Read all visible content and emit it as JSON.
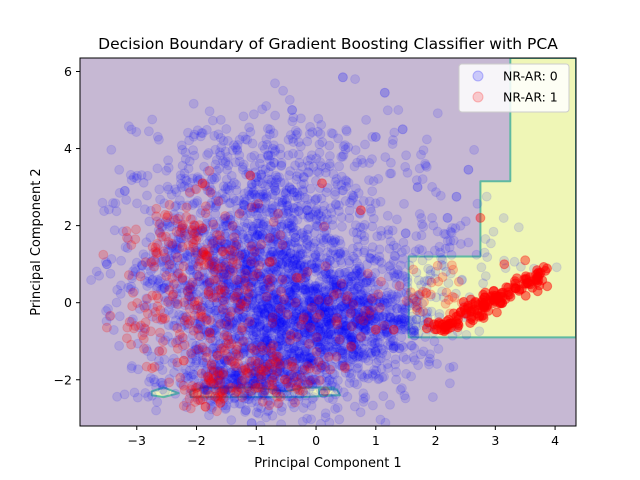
{
  "chart_data": {
    "type": "scatter",
    "title": "Decision Boundary of Gradient Boosting Classifier with PCA",
    "xlabel": "Principal Component 1",
    "ylabel": "Principal Component 2",
    "xlim": [
      -3.95,
      4.35
    ],
    "ylim": [
      -3.2,
      6.35
    ],
    "xticks": [
      -3,
      -2,
      -1,
      0,
      1,
      2,
      3,
      4
    ],
    "yticks": [
      -2,
      0,
      2,
      4,
      6
    ],
    "grid": false,
    "legend_position": "top-right",
    "colors": {
      "background_region": "#c6b8d3",
      "class1_region": "#eff6b6",
      "boundary": "#5fb9a1",
      "class0_points": "#0000ff",
      "class1_points": "#ff0000"
    },
    "decision_regions": [
      {
        "class": 1,
        "polygon": [
          [
            3.25,
            6.35
          ],
          [
            4.35,
            6.35
          ],
          [
            4.35,
            -0.9
          ],
          [
            1.55,
            -0.9
          ],
          [
            1.55,
            1.2
          ],
          [
            2.75,
            1.2
          ],
          [
            2.75,
            3.15
          ],
          [
            3.25,
            3.15
          ]
        ]
      },
      {
        "class": 1,
        "polygon": [
          [
            -2.75,
            -2.3
          ],
          [
            -2.55,
            -2.2
          ],
          [
            -2.3,
            -2.35
          ],
          [
            -2.55,
            -2.45
          ],
          [
            -2.75,
            -2.4
          ]
        ]
      },
      {
        "class": 1,
        "polygon": [
          [
            -2.1,
            -2.3
          ],
          [
            -1.9,
            -2.2
          ],
          [
            -1.0,
            -2.2
          ],
          [
            -0.5,
            -2.3
          ],
          [
            -0.2,
            -2.2
          ],
          [
            0.3,
            -2.2
          ],
          [
            0.35,
            -2.4
          ],
          [
            -0.2,
            -2.45
          ],
          [
            -1.0,
            -2.45
          ],
          [
            -2.1,
            -2.45
          ]
        ]
      },
      {
        "class": 1,
        "polygon": [
          [
            0.05,
            -2.25
          ],
          [
            0.35,
            -2.25
          ],
          [
            0.4,
            -2.4
          ],
          [
            0.05,
            -2.4
          ]
        ]
      }
    ],
    "series": [
      {
        "name": "NR-AR: 0",
        "color": "#0000ff",
        "alpha": 0.12,
        "clusters": [
          {
            "cx": -1.0,
            "cy": 1.0,
            "sx": 1.0,
            "sy": 1.4,
            "n": 1700
          },
          {
            "cx": -0.3,
            "cy": -0.9,
            "sx": 1.0,
            "sy": 0.9,
            "n": 900
          },
          {
            "cx": 0.8,
            "cy": -0.4,
            "sx": 0.7,
            "sy": 0.6,
            "n": 500
          },
          {
            "cx": -1.2,
            "cy": -2.1,
            "sx": 0.6,
            "sy": 0.3,
            "n": 300
          },
          {
            "cx": 2.0,
            "cy": 1.6,
            "sx": 0.8,
            "sy": 0.6,
            "n": 80
          },
          {
            "cx": -0.5,
            "cy": 3.8,
            "sx": 1.2,
            "sy": 0.7,
            "n": 200
          }
        ],
        "points": [
          {
            "x": 0.45,
            "y": 5.85
          },
          {
            "x": 1.15,
            "y": 5.45
          },
          {
            "x": -0.4,
            "y": 5.0
          },
          {
            "x": 1.0,
            "y": 4.3
          },
          {
            "x": 1.45,
            "y": 4.5
          },
          {
            "x": 2.55,
            "y": 3.45
          },
          {
            "x": 1.7,
            "y": 3.0
          },
          {
            "x": 2.2,
            "y": 2.2
          },
          {
            "x": -3.5,
            "y": 1.0
          },
          {
            "x": -3.2,
            "y": 2.9
          },
          {
            "x": 1.5,
            "y": 1.8
          },
          {
            "x": 2.35,
            "y": 2.75
          }
        ]
      },
      {
        "name": "NR-AR: 1",
        "color": "#ff0000",
        "alpha": 0.2,
        "clusters": [
          {
            "cx": -2.3,
            "cy": 1.5,
            "sx": 0.5,
            "sy": 0.5,
            "n": 60
          },
          {
            "cx": -1.8,
            "cy": 0.8,
            "sx": 0.4,
            "sy": 1.2,
            "n": 80
          },
          {
            "cx": -2.6,
            "cy": -0.6,
            "sx": 0.4,
            "sy": 0.6,
            "n": 60
          },
          {
            "cx": -1.2,
            "cy": 0.2,
            "sx": 0.7,
            "sy": 1.0,
            "n": 90
          },
          {
            "cx": -0.9,
            "cy": -1.8,
            "sx": 0.6,
            "sy": 0.4,
            "n": 110
          },
          {
            "cx": -1.7,
            "cy": -2.3,
            "sx": 0.3,
            "sy": 0.2,
            "n": 40
          },
          {
            "cx": 0.3,
            "cy": -0.6,
            "sx": 0.5,
            "sy": 0.6,
            "n": 40
          },
          {
            "cx": 2.0,
            "cy": 0.3,
            "sx": 0.4,
            "sy": 0.4,
            "n": 30
          }
        ],
        "trend": {
          "x0": 2.0,
          "y0": -0.7,
          "x1": 3.85,
          "y1": 0.75,
          "n": 160,
          "spread": 0.14
        },
        "points": [
          {
            "x": -1.9,
            "y": 3.1
          },
          {
            "x": -1.1,
            "y": 3.3
          },
          {
            "x": 0.75,
            "y": 2.4
          },
          {
            "x": 0.1,
            "y": 3.1
          },
          {
            "x": 2.75,
            "y": 2.2
          },
          {
            "x": 3.15,
            "y": 1.0
          },
          {
            "x": 3.5,
            "y": 1.1
          },
          {
            "x": 1.3,
            "y": -0.7
          },
          {
            "x": 1.0,
            "y": -0.7
          },
          {
            "x": -1.85,
            "y": -2.7
          },
          {
            "x": -1.6,
            "y": -2.6
          }
        ]
      }
    ]
  }
}
